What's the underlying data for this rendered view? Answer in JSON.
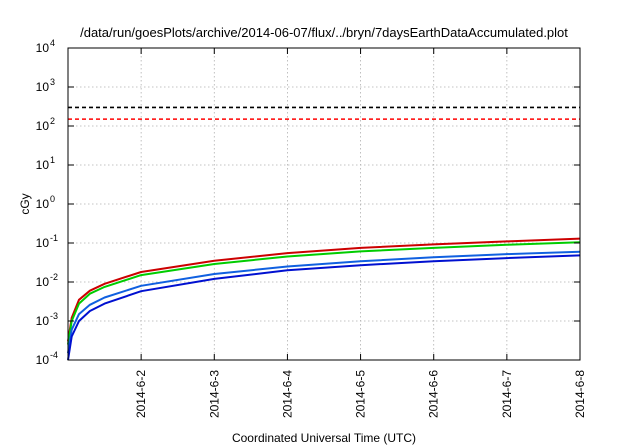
{
  "chart_data": {
    "type": "line",
    "title": "/data/run/goesPlots/archive/2014-06-07/flux/../bryn/7daysEarthDataAccumulated.plot",
    "xlabel": "Coordinated Universal Time (UTC)",
    "ylabel": "cGy",
    "x_ticks": [
      "2014-6-2",
      "2014-6-3",
      "2014-6-4",
      "2014-6-5",
      "2014-6-6",
      "2014-6-7",
      "2014-6-8"
    ],
    "xlim": [
      "2014-06-01",
      "2014-06-08"
    ],
    "y_scale": "log",
    "ylim": [
      0.0001,
      10000
    ],
    "y_ticks": [
      {
        "base": "10",
        "exp": "-4"
      },
      {
        "base": "10",
        "exp": "-3"
      },
      {
        "base": "10",
        "exp": "-2"
      },
      {
        "base": "10",
        "exp": "-1"
      },
      {
        "base": "10",
        "exp": "0"
      },
      {
        "base": "10",
        "exp": "1"
      },
      {
        "base": "10",
        "exp": "2"
      },
      {
        "base": "10",
        "exp": "3"
      },
      {
        "base": "10",
        "exp": "4"
      }
    ],
    "grid": true,
    "x": [
      "2014-06-01",
      "2014-06-01.05",
      "2014-06-01.15",
      "2014-06-01.3",
      "2014-06-01.5",
      "2014-06-02",
      "2014-06-03",
      "2014-06-04",
      "2014-06-05",
      "2014-06-06",
      "2014-06-07",
      "2014-06-08"
    ],
    "series": [
      {
        "color": "#cc0000",
        "values": [
          0.0003,
          0.0012,
          0.0035,
          0.006,
          0.009,
          0.018,
          0.035,
          0.055,
          0.075,
          0.092,
          0.11,
          0.13
        ]
      },
      {
        "color": "#00cc00",
        "values": [
          0.00025,
          0.001,
          0.0028,
          0.005,
          0.0075,
          0.015,
          0.029,
          0.045,
          0.061,
          0.075,
          0.09,
          0.105
        ]
      },
      {
        "color": "#1060e0",
        "values": [
          0.00015,
          0.0006,
          0.0015,
          0.0026,
          0.004,
          0.008,
          0.016,
          0.025,
          0.034,
          0.043,
          0.052,
          0.06
        ]
      },
      {
        "color": "#0010d0",
        "values": [
          0.0001,
          0.0004,
          0.001,
          0.0018,
          0.0028,
          0.0058,
          0.012,
          0.02,
          0.027,
          0.034,
          0.041,
          0.048
        ]
      }
    ],
    "thresholds": [
      {
        "color": "#000000",
        "value": 300
      },
      {
        "color": "#ff0000",
        "value": 150
      }
    ]
  }
}
